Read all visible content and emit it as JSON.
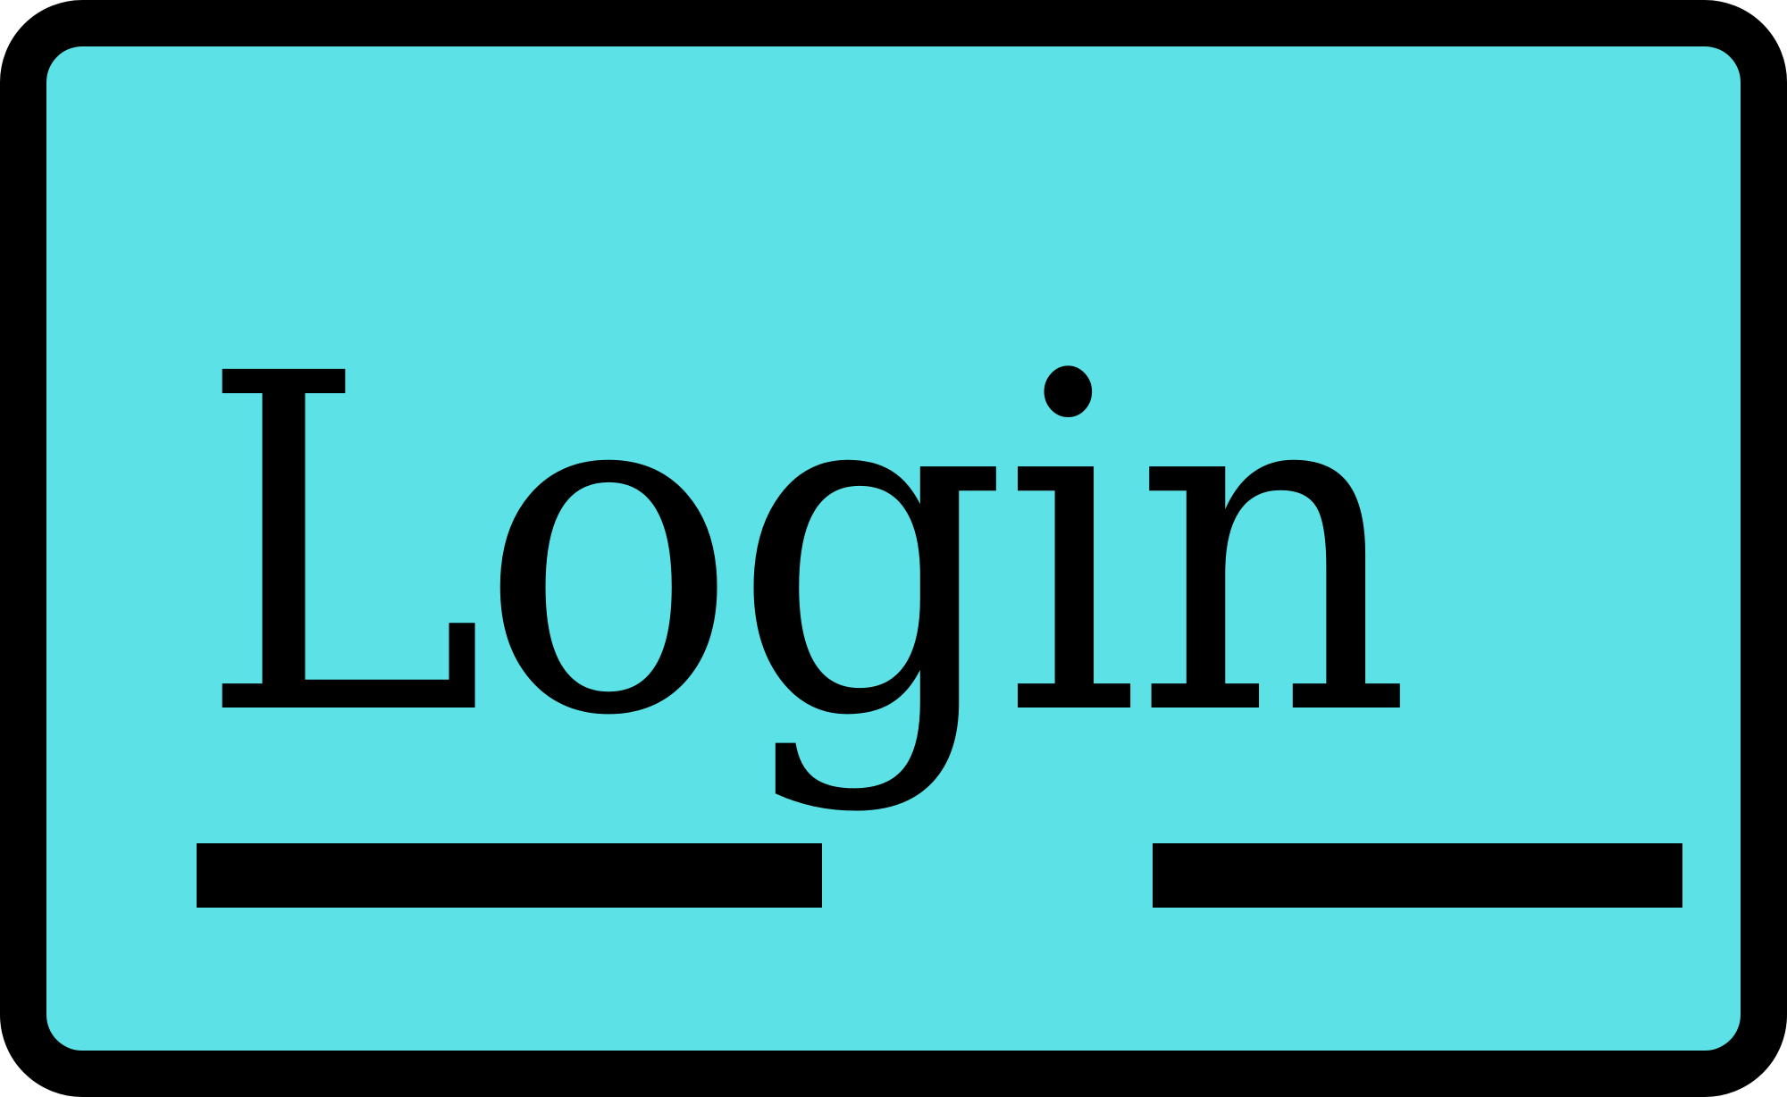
{
  "button": {
    "label": "Login",
    "background_color": "#5ce1e6",
    "border_color": "#000000",
    "text_color": "#000000"
  }
}
